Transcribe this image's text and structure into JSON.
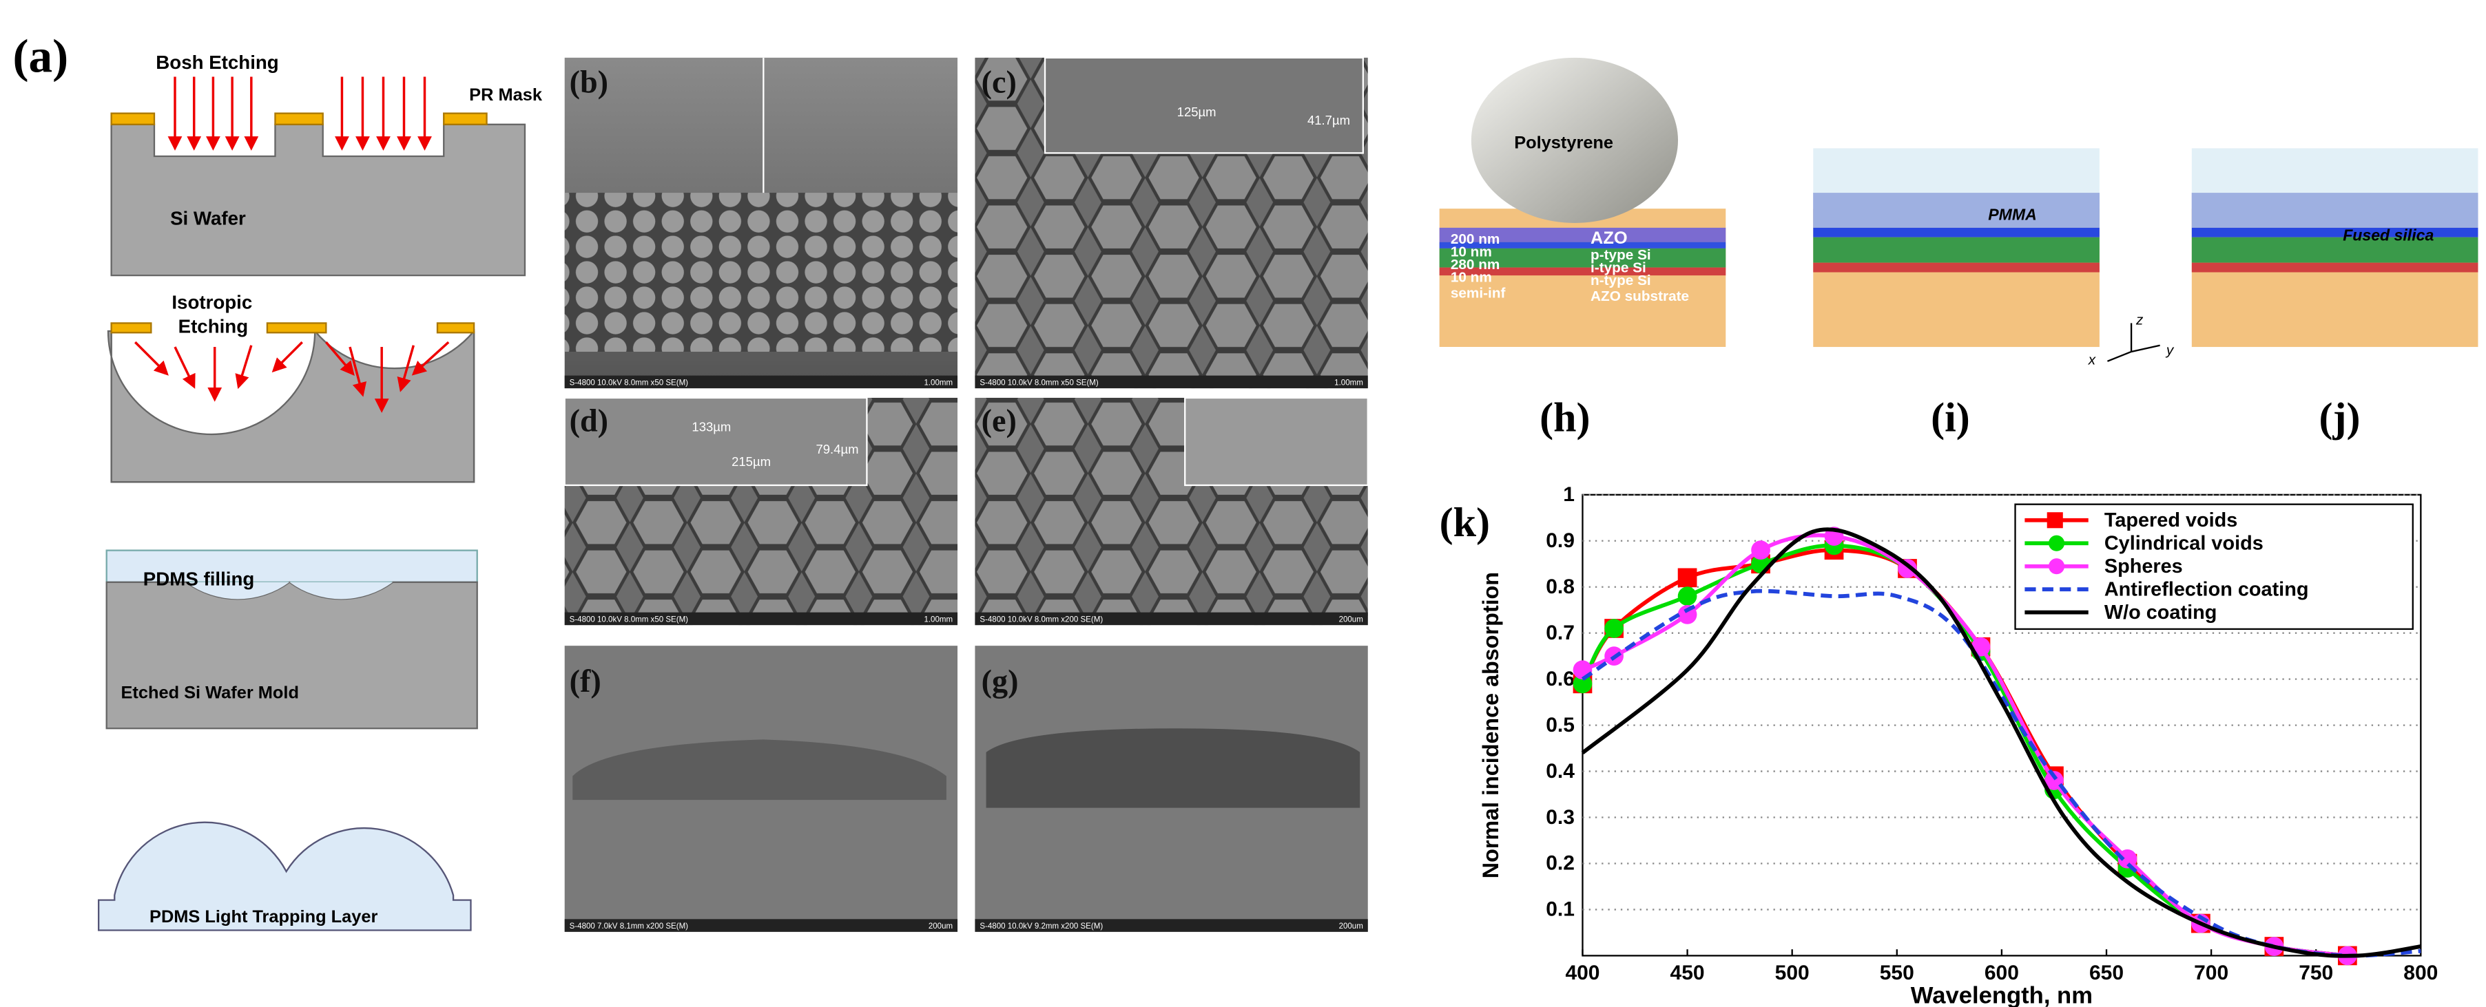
{
  "panel_labels": [
    "(a)",
    "(b)",
    "(c)",
    "(d)",
    "(e)",
    "(f)",
    "(g)",
    "(h)",
    "(i)",
    "(j)",
    "(k)"
  ],
  "schematic": {
    "bosh_etching": "Bosh Etching",
    "pr_mask": "PR Mask",
    "si_wafer": "Si Wafer",
    "isotropic_etching": [
      "Isotropic",
      "Etching"
    ],
    "pdms_filling": "PDMS filling",
    "etched_mold": "Etched Si Wafer Mold",
    "light_trapping_layer": "PDMS Light Trapping Layer"
  },
  "sem": [
    {
      "caption": "S-4800 10.0kV 8.0mm x50 SE(M)",
      "scale": "1.00mm",
      "annotations": []
    },
    {
      "caption": "S-4800 10.0kV 8.0mm x50 SE(M)",
      "scale": "1.00mm",
      "annotations": [
        "125µm",
        "41.7µm"
      ]
    },
    {
      "caption": "S-4800 10.0kV 8.0mm x50 SE(M)",
      "scale": "1.00mm",
      "annotations": [
        "133µm",
        "215µm",
        "79.4µm"
      ]
    },
    {
      "caption": "S-4800 10.0kV 8.0mm x200 SE(M)",
      "scale": "200um",
      "annotations": []
    },
    {
      "caption": "S-4800 7.0kV 8.1mm x200 SE(M)",
      "scale": "200um",
      "annotations": []
    },
    {
      "caption": "S-4800 10.0kV 9.2mm x200 SE(M)",
      "scale": "200um",
      "annotations": []
    }
  ],
  "structures": {
    "polystyrene": "Polystyrene",
    "thicknesses": [
      "200 nm",
      "10 nm",
      "280 nm",
      "10 nm",
      "semi-inf"
    ],
    "layers": [
      "AZO",
      "p-type Si",
      "i-type Si",
      "n-type Si",
      "AZO substrate"
    ],
    "pmma": "PMMA",
    "fused_silica": "Fused silica",
    "axes": [
      "z",
      "x",
      "y"
    ]
  },
  "chart_data": {
    "type": "line",
    "xlabel": "Wavelength, nm",
    "ylabel": "Normal incidence absorption",
    "xlim": [
      400,
      800
    ],
    "xticks": [
      400,
      450,
      500,
      550,
      600,
      650,
      700,
      750,
      800
    ],
    "ylim": [
      0,
      1
    ],
    "yticks": [
      0.1,
      0.2,
      0.3,
      0.4,
      0.5,
      0.6,
      0.7,
      0.8,
      0.9,
      1
    ],
    "grid": true,
    "legend": "upper right",
    "series": [
      {
        "name": "Tapered voids",
        "color": "#ff0000",
        "marker": "square",
        "dash": "solid",
        "x": [
          400,
          415,
          450,
          485,
          520,
          555,
          590,
          625,
          660,
          695,
          730,
          765
        ],
        "values": [
          0.59,
          0.71,
          0.82,
          0.85,
          0.88,
          0.84,
          0.67,
          0.39,
          0.2,
          0.07,
          0.02,
          0
        ]
      },
      {
        "name": "Cylindrical voids",
        "color": "#00dd00",
        "marker": "circle",
        "dash": "solid",
        "x": [
          400,
          415,
          450,
          485,
          520,
          555,
          590,
          625,
          660,
          695,
          730,
          765
        ],
        "values": [
          0.59,
          0.71,
          0.78,
          0.85,
          0.89,
          0.84,
          0.66,
          0.36,
          0.19,
          0.07,
          0.02,
          0
        ]
      },
      {
        "name": "Spheres",
        "color": "#ff33ff",
        "marker": "circle",
        "dash": "solid",
        "x": [
          400,
          415,
          450,
          485,
          520,
          555,
          590,
          625,
          660,
          695,
          730,
          765
        ],
        "values": [
          0.62,
          0.65,
          0.74,
          0.88,
          0.91,
          0.84,
          0.67,
          0.38,
          0.21,
          0.07,
          0.02,
          0
        ]
      },
      {
        "name": "Antireflection coating",
        "color": "#2244dd",
        "marker": "none",
        "dash": "dashed",
        "x": [
          400,
          450,
          480,
          520,
          550,
          580,
          620,
          660,
          700,
          730,
          765,
          800
        ],
        "values": [
          0.6,
          0.75,
          0.79,
          0.78,
          0.78,
          0.7,
          0.42,
          0.2,
          0.07,
          0.02,
          0,
          0.01
        ]
      },
      {
        "name": "W/o coating",
        "color": "#000000",
        "marker": "none",
        "dash": "solid",
        "x": [
          400,
          450,
          480,
          510,
          540,
          570,
          600,
          630,
          660,
          700,
          740,
          770,
          800
        ],
        "values": [
          0.44,
          0.62,
          0.8,
          0.92,
          0.89,
          0.78,
          0.55,
          0.3,
          0.16,
          0.06,
          0.01,
          0,
          0.02
        ]
      }
    ]
  }
}
